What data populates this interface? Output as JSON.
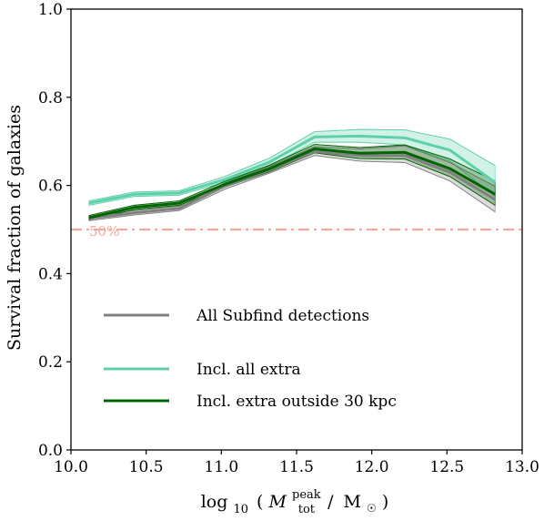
{
  "chart_data": {
    "type": "line",
    "xlabel": "log10 ( M_tot^peak / M☉ )",
    "xlabel_parts": {
      "prefix": "log",
      "prefix_sub": "10",
      "paren_open": "(",
      "var": "M",
      "var_sub": "tot",
      "var_sup": "peak",
      "slash": "/",
      "unit": "M",
      "unit_sub": "☉",
      "paren_close": ")"
    },
    "ylabel": "Survival fraction of galaxies",
    "xlim": [
      10.0,
      13.0
    ],
    "ylim": [
      0.0,
      1.0
    ],
    "xticks": [
      10.0,
      10.5,
      11.0,
      11.5,
      12.0,
      12.5,
      13.0
    ],
    "xtick_labels": [
      "10.0",
      "10.5",
      "11.0",
      "11.5",
      "12.0",
      "12.5",
      "13.0"
    ],
    "yticks": [
      0.0,
      0.2,
      0.4,
      0.6,
      0.8,
      1.0
    ],
    "ytick_labels": [
      "0.0",
      "0.2",
      "0.4",
      "0.6",
      "0.8",
      "1.0"
    ],
    "grid": false,
    "legend_position": "lower-left",
    "x": [
      10.12,
      10.42,
      10.72,
      11.02,
      11.32,
      11.62,
      11.92,
      12.22,
      12.52,
      12.82
    ],
    "series": [
      {
        "name": "All Subfind detections",
        "color": "#808080",
        "values": [
          0.525,
          0.538,
          0.548,
          0.598,
          0.635,
          0.677,
          0.668,
          0.668,
          0.63,
          0.568
        ],
        "band_low": [
          0.52,
          0.533,
          0.543,
          0.591,
          0.628,
          0.668,
          0.655,
          0.652,
          0.61,
          0.54
        ],
        "band_high": [
          0.53,
          0.543,
          0.553,
          0.605,
          0.643,
          0.688,
          0.683,
          0.69,
          0.652,
          0.598
        ]
      },
      {
        "name": "Incl. all extra",
        "color": "#5fd1a9",
        "values": [
          0.56,
          0.58,
          0.583,
          0.613,
          0.653,
          0.71,
          0.712,
          0.708,
          0.68,
          0.607
        ],
        "band_low": [
          0.555,
          0.575,
          0.578,
          0.607,
          0.645,
          0.698,
          0.698,
          0.692,
          0.655,
          0.575
        ],
        "band_high": [
          0.565,
          0.585,
          0.588,
          0.62,
          0.662,
          0.722,
          0.727,
          0.726,
          0.705,
          0.645
        ]
      },
      {
        "name": "Incl. extra outside 30 kpc",
        "color": "#006400",
        "values": [
          0.527,
          0.55,
          0.56,
          0.602,
          0.638,
          0.683,
          0.673,
          0.675,
          0.638,
          0.58
        ],
        "band_low": [
          0.522,
          0.545,
          0.555,
          0.596,
          0.631,
          0.674,
          0.661,
          0.66,
          0.62,
          0.555
        ],
        "band_high": [
          0.532,
          0.555,
          0.565,
          0.609,
          0.646,
          0.693,
          0.686,
          0.692,
          0.66,
          0.61
        ]
      }
    ],
    "reference_line": {
      "y": 0.5,
      "label": "50%",
      "color": "#f4a79a",
      "style": "dash-dot"
    }
  }
}
